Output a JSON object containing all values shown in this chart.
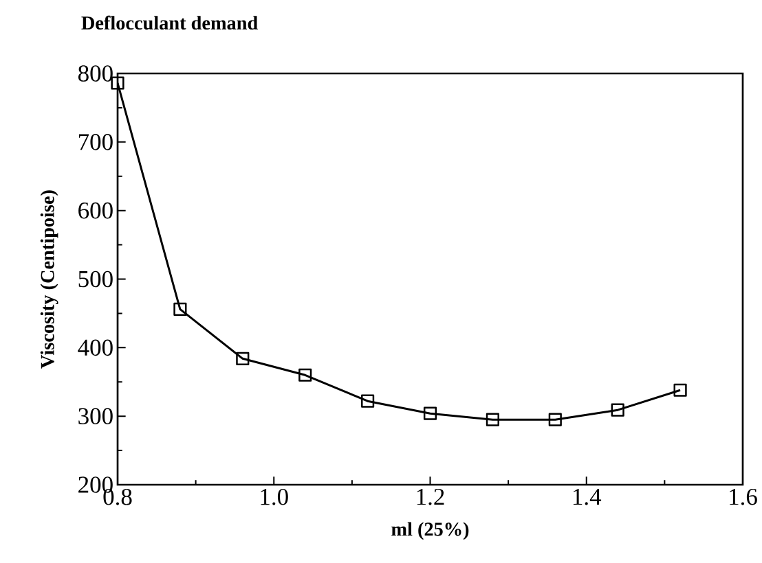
{
  "chart_data": {
    "type": "line",
    "title": "Deflocculant demand",
    "xlabel": "ml (25%)",
    "ylabel": "Viscosity (Centipoise)",
    "x": [
      0.8,
      0.88,
      0.96,
      1.04,
      1.12,
      1.2,
      1.28,
      1.36,
      1.44,
      1.52
    ],
    "values": [
      786,
      456,
      384,
      360,
      322,
      304,
      295,
      295,
      309,
      338
    ],
    "color": "#000000",
    "marker": "square",
    "line_style": "solid",
    "xlim": [
      0.8,
      1.6
    ],
    "ylim": [
      200,
      800
    ],
    "xticks": [
      {
        "value": 0.8,
        "label": "0.8"
      },
      {
        "value": 1.0,
        "label": "1.0"
      },
      {
        "value": 1.2,
        "label": "1.2"
      },
      {
        "value": 1.4,
        "label": "1.4"
      },
      {
        "value": 1.6,
        "label": "1.6"
      }
    ],
    "yticks": [
      200,
      300,
      400,
      500,
      600,
      700,
      800
    ]
  }
}
